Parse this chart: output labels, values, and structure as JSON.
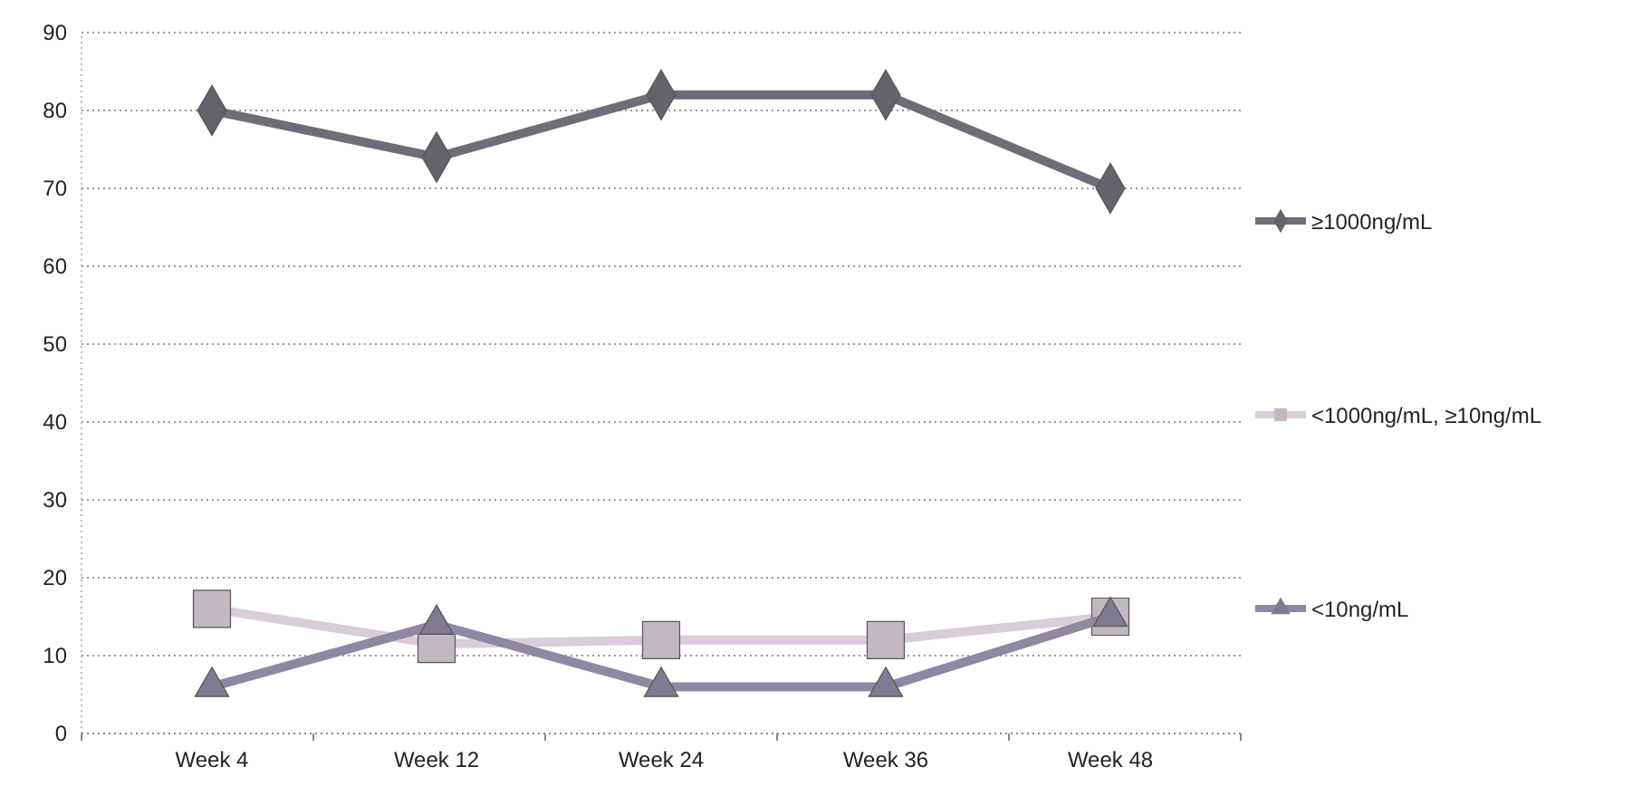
{
  "chart_data": {
    "type": "line",
    "categories": [
      "Week 4",
      "Week 12",
      "Week 24",
      "Week 36",
      "Week 48"
    ],
    "series": [
      {
        "name": "≥1000ng/mL",
        "color": "#6e6e78",
        "marker": "diamond",
        "values": [
          80,
          74,
          82,
          82,
          70
        ]
      },
      {
        "name": "<1000ng/mL, ≥10ng/mL",
        "color": "#d8cdd8",
        "marker": "square",
        "values": [
          16,
          11.5,
          12,
          12,
          15
        ]
      },
      {
        "name": "<10ng/mL",
        "color": "#8e88a2",
        "marker": "triangle",
        "values": [
          6,
          14,
          6,
          6,
          15
        ]
      }
    ],
    "ylim": [
      0,
      90
    ],
    "yticks": [
      0,
      10,
      20,
      30,
      40,
      50,
      60,
      70,
      80,
      90
    ],
    "grid": "y",
    "legend": "right",
    "line_style": "solid"
  }
}
